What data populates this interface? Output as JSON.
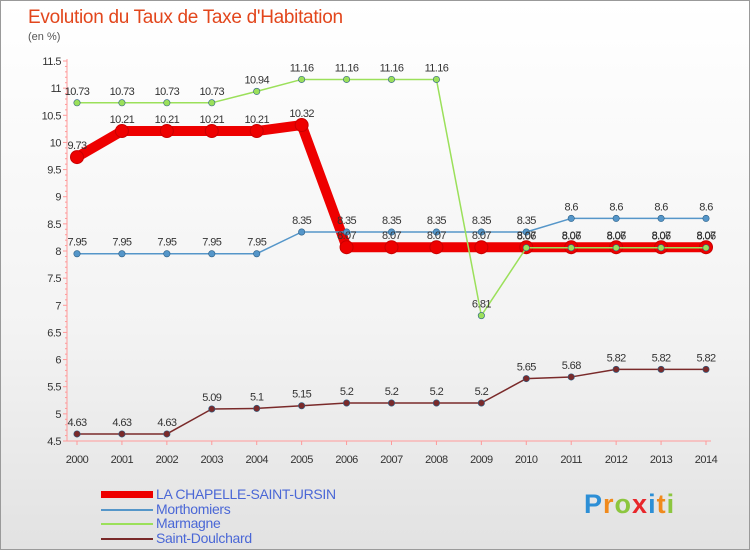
{
  "chart_data": {
    "type": "line",
    "title": "Evolution du Taux de Taxe d'Habitation",
    "unit": "(en %)",
    "x": [
      "2000",
      "2001",
      "2002",
      "2003",
      "2004",
      "2005",
      "2006",
      "2007",
      "2008",
      "2009",
      "2010",
      "2011",
      "2012",
      "2013",
      "2014"
    ],
    "ylim": [
      4.5,
      11.5
    ],
    "yticks": [
      "4.5",
      "5",
      "5.5",
      "6",
      "6.5",
      "7",
      "7.5",
      "8",
      "8.5",
      "9",
      "9.5",
      "10",
      "10.5",
      "11",
      "11.5"
    ],
    "grid": false,
    "legend": "bottom-left",
    "series": [
      {
        "name": "LA CHAPELLE-SAINT-URSIN",
        "color": "#ee0000",
        "values": [
          9.73,
          10.21,
          10.21,
          10.21,
          10.21,
          10.32,
          8.07,
          8.07,
          8.07,
          8.07,
          8.07,
          8.07,
          8.07,
          8.07,
          8.07
        ],
        "labels": [
          "9.73",
          "10.21",
          "10.21",
          "10.21",
          "10.21",
          "10.32",
          "8.07",
          "8.07",
          "8.07",
          "8.07",
          "8.07",
          "8.07",
          "8.07",
          "8.07",
          "8.07"
        ]
      },
      {
        "name": "Morthomiers",
        "color": "#5596c9",
        "values": [
          7.95,
          7.95,
          7.95,
          7.95,
          7.95,
          8.35,
          8.35,
          8.35,
          8.35,
          8.35,
          8.35,
          8.6,
          8.6,
          8.6,
          8.6
        ],
        "labels": [
          "7.95",
          "7.95",
          "7.95",
          "7.95",
          "7.95",
          "8.35",
          "8.35",
          "8.35",
          "8.35",
          "8.35",
          "8.35",
          "8.6",
          "8.6",
          "8.6",
          "8.6"
        ]
      },
      {
        "name": "Marmagne",
        "color": "#9be05a",
        "values": [
          10.73,
          10.73,
          10.73,
          10.73,
          10.94,
          11.16,
          11.16,
          11.16,
          11.16,
          6.81,
          8.06,
          8.06,
          8.06,
          8.06,
          8.06
        ],
        "labels": [
          "10.73",
          "10.73",
          "10.73",
          "10.73",
          "10.94",
          "11.16",
          "11.16",
          "11.16",
          "11.16",
          "6.81",
          "8.06",
          "8.06",
          "8.06",
          "8.06",
          "8.06"
        ]
      },
      {
        "name": "Saint-Doulchard",
        "color": "#7a2a2a",
        "values": [
          4.63,
          4.63,
          4.63,
          5.09,
          5.1,
          5.15,
          5.2,
          5.2,
          5.2,
          5.2,
          5.65,
          5.68,
          5.82,
          5.82,
          5.82
        ],
        "labels": [
          "4.63",
          "4.63",
          "4.63",
          "5.09",
          "5.1",
          "5.15",
          "5.2",
          "5.2",
          "5.2",
          "5.2",
          "5.65",
          "5.68",
          "5.82",
          "5.82",
          "5.82"
        ]
      }
    ]
  }
}
